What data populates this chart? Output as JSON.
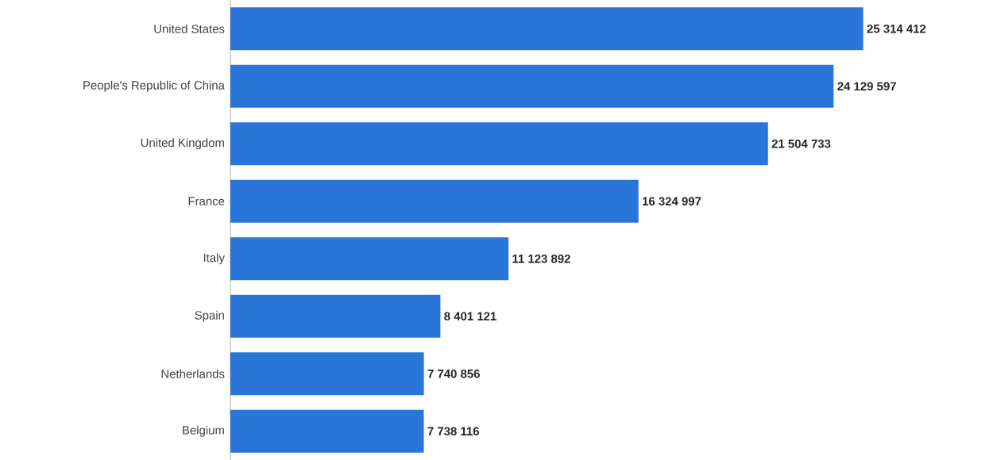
{
  "chart_data": {
    "type": "bar",
    "orientation": "horizontal",
    "categories": [
      "United States",
      "People's Republic of China",
      "United Kingdom",
      "France",
      "Italy",
      "Spain",
      "Netherlands",
      "Belgium"
    ],
    "values": [
      25314412,
      24129597,
      21504733,
      16324997,
      11123892,
      8401121,
      7740856,
      7738116
    ],
    "value_labels": [
      "25 314 412",
      "24 129 597",
      "21 504 733",
      "16 324 997",
      "11 123 892",
      "8 401 121",
      "7 740 856",
      "7 738 116"
    ],
    "color": "#2a75d8"
  }
}
